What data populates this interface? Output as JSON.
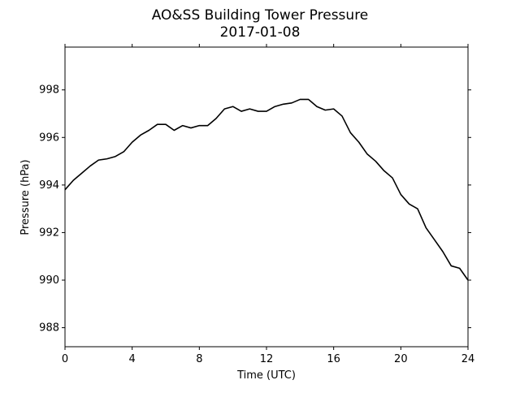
{
  "chart_data": {
    "type": "line",
    "title": "AO&SS Building Tower Pressure",
    "subtitle": "2017-01-08",
    "x_label": "Time (UTC)",
    "y_label": "Pressure (hPa)",
    "x": [
      0,
      0.5,
      1,
      1.5,
      2,
      2.5,
      3,
      3.5,
      4,
      4.5,
      5,
      5.5,
      6,
      6.5,
      7,
      7.5,
      8,
      8.5,
      9,
      9.5,
      10,
      10.5,
      11,
      11.5,
      12,
      12.5,
      13,
      13.5,
      14,
      14.5,
      15,
      15.5,
      16,
      16.5,
      17,
      17.5,
      18,
      18.5,
      19,
      19.5,
      20,
      20.5,
      21,
      21.5,
      22,
      22.5,
      23,
      23.5,
      24
    ],
    "series": [
      {
        "name": "Pressure",
        "color": "#000000",
        "values": [
          993.8,
          994.2,
          994.5,
          994.8,
          995.05,
          995.1,
          995.2,
          995.4,
          995.8,
          996.1,
          996.3,
          996.55,
          996.55,
          996.3,
          996.5,
          996.4,
          996.5,
          996.5,
          996.8,
          997.2,
          997.3,
          997.1,
          997.2,
          997.1,
          997.1,
          997.3,
          997.4,
          997.45,
          997.6,
          997.6,
          997.3,
          997.15,
          997.2,
          996.9,
          996.2,
          995.8,
          995.3,
          995.0,
          994.6,
          994.3,
          993.6,
          993.2,
          993.0,
          992.2,
          991.7,
          991.2,
          990.6,
          990.5,
          990.0
        ]
      }
    ],
    "xlim": [
      0,
      24
    ],
    "xticks": [
      0,
      4,
      8,
      12,
      16,
      20,
      24
    ],
    "ylim": [
      987.2,
      999.8
    ],
    "yticks": [
      988,
      990,
      992,
      994,
      996,
      998
    ],
    "grid": false
  }
}
